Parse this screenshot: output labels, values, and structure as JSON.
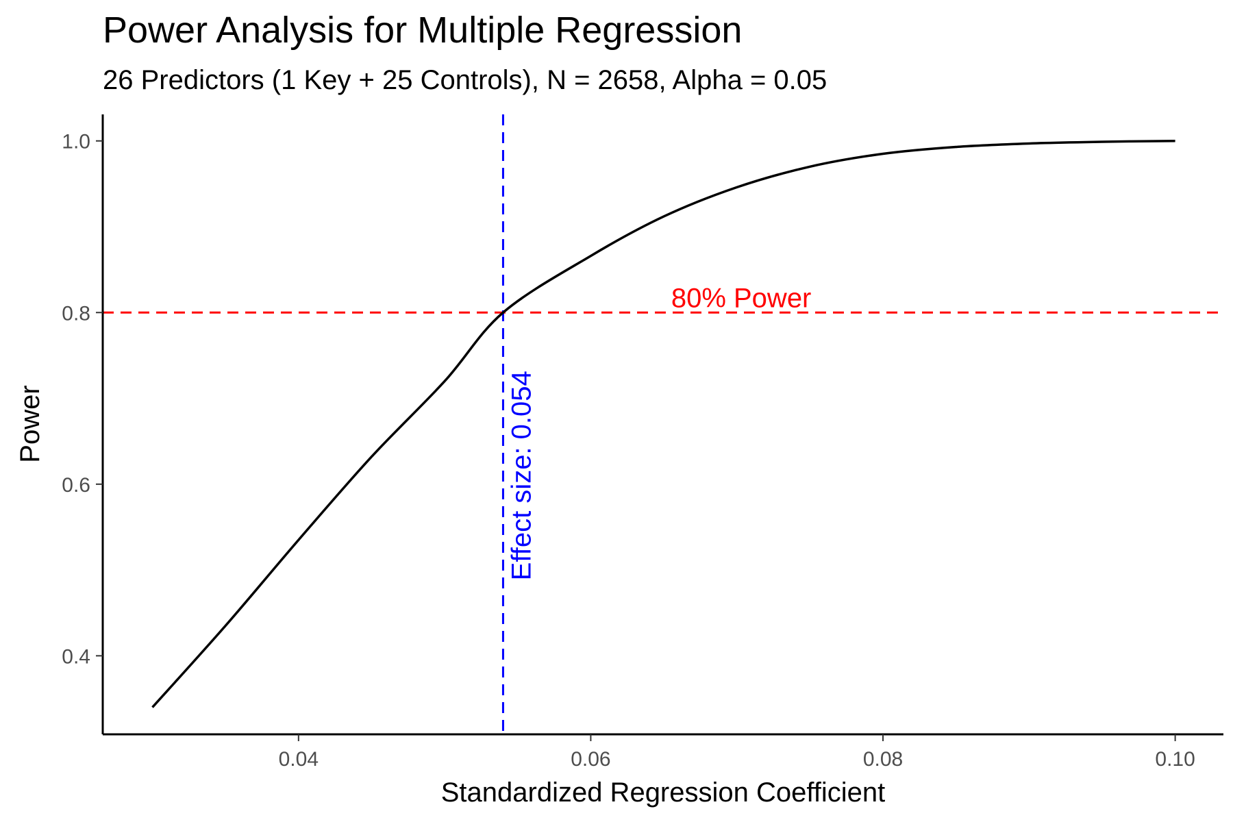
{
  "chart_data": {
    "type": "line",
    "title": "Power Analysis for Multiple Regression",
    "subtitle": "26 Predictors (1 Key + 25 Controls), N = 2658, Alpha = 0.05",
    "xlabel": "Standardized Regression Coefficient",
    "ylabel": "Power",
    "xlim": [
      0.0266,
      0.1033
    ],
    "ylim": [
      0.3085,
      1.0309
    ],
    "x_ticks": [
      0.04,
      0.06,
      0.08,
      0.1
    ],
    "x_tick_labels": [
      "0.04",
      "0.06",
      "0.08",
      "0.10"
    ],
    "y_ticks": [
      0.4,
      0.6,
      0.8,
      1.0
    ],
    "y_tick_labels": [
      "0.4",
      "0.6",
      "0.8",
      "1.0"
    ],
    "grid": false,
    "legend": "none",
    "series": [
      {
        "color": "#000000",
        "x": [
          0.03,
          0.035,
          0.04,
          0.045,
          0.05,
          0.054,
          0.06,
          0.065,
          0.07,
          0.075,
          0.08,
          0.085,
          0.09,
          0.095,
          0.1
        ],
        "y": [
          0.34,
          0.435,
          0.535,
          0.632,
          0.72,
          0.8,
          0.866,
          0.912,
          0.946,
          0.97,
          0.985,
          0.993,
          0.997,
          0.999,
          1.0
        ]
      }
    ],
    "reference_lines": [
      {
        "orientation": "horizontal",
        "value": 0.8,
        "color": "#ff0000",
        "style": "dashed",
        "label": "80% Power"
      },
      {
        "orientation": "vertical",
        "value": 0.054,
        "color": "#0000ff",
        "style": "dashed",
        "label": "Effect size: 0.054"
      }
    ]
  }
}
